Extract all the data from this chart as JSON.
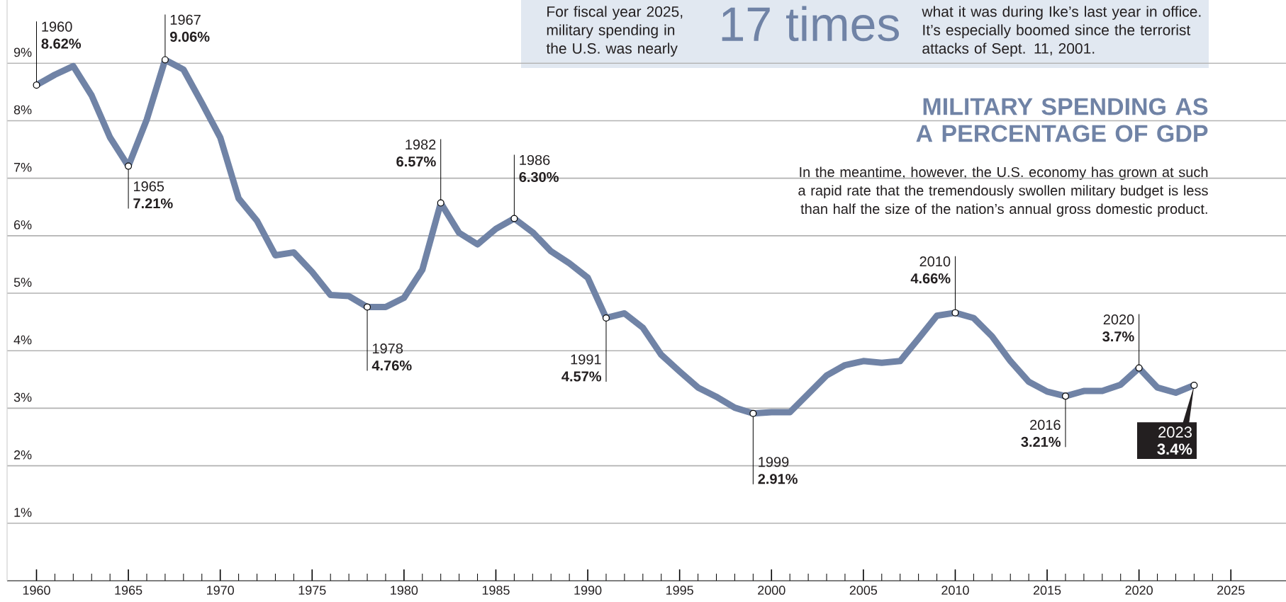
{
  "chart_data": {
    "type": "line",
    "title": "MILITARY SPENDING AS A PERCENTAGE OF GDP",
    "subtitle": "In the meantime, however, the U.S. economy has grown at such a rapid rate that the tremendously swollen military budget is less than half the size of the nation’s annual gross domestic product.",
    "x": [
      1960,
      1961,
      1962,
      1963,
      1964,
      1965,
      1966,
      1967,
      1968,
      1969,
      1970,
      1971,
      1972,
      1973,
      1974,
      1975,
      1976,
      1977,
      1978,
      1979,
      1980,
      1981,
      1982,
      1983,
      1984,
      1985,
      1986,
      1987,
      1988,
      1989,
      1990,
      1991,
      1992,
      1993,
      1994,
      1995,
      1996,
      1997,
      1998,
      1999,
      2000,
      2001,
      2002,
      2003,
      2004,
      2005,
      2006,
      2007,
      2008,
      2009,
      2010,
      2011,
      2012,
      2013,
      2014,
      2015,
      2016,
      2017,
      2018,
      2019,
      2020,
      2021,
      2022,
      2023
    ],
    "values": [
      8.62,
      8.8,
      8.95,
      8.44,
      7.71,
      7.21,
      8.02,
      9.06,
      8.89,
      8.31,
      7.71,
      6.65,
      6.26,
      5.66,
      5.71,
      5.37,
      4.97,
      4.95,
      4.76,
      4.76,
      4.92,
      5.41,
      6.57,
      6.05,
      5.85,
      6.12,
      6.3,
      6.06,
      5.73,
      5.52,
      5.27,
      4.57,
      4.65,
      4.4,
      3.93,
      3.64,
      3.36,
      3.2,
      3.01,
      2.91,
      2.93,
      2.93,
      3.25,
      3.57,
      3.75,
      3.82,
      3.79,
      3.82,
      4.21,
      4.61,
      4.66,
      4.57,
      4.25,
      3.82,
      3.46,
      3.29,
      3.21,
      3.3,
      3.3,
      3.41,
      3.7,
      3.36,
      3.27,
      3.4
    ],
    "color": "#7083a6",
    "xlim": [
      1958.4,
      2028
    ],
    "ylim": [
      0,
      10.1
    ],
    "xticks": [
      1960,
      1965,
      1970,
      1975,
      1980,
      1985,
      1990,
      1995,
      2000,
      2005,
      2010,
      2015,
      2020,
      2025
    ],
    "yticks": [
      {
        "value": 1,
        "label": "1%"
      },
      {
        "value": 2,
        "label": "2%"
      },
      {
        "value": 3,
        "label": "3%"
      },
      {
        "value": 4,
        "label": "4%"
      },
      {
        "value": 5,
        "label": "5%"
      },
      {
        "value": 6,
        "label": "6%"
      },
      {
        "value": 7,
        "label": "7%"
      },
      {
        "value": 8,
        "label": "8%"
      },
      {
        "value": 9,
        "label": "9%"
      }
    ],
    "grid": "y",
    "annotations": [
      "For fiscal year 2025, military spending in the U.S. was nearly",
      "17 times",
      "what it was during Ike’s last year in office. It’s especially boomed since the terrorist attacks of Sept. 11, 2001.",
      {
        "text": "1960 **8.62%**",
        "x": 1960,
        "y": 8.62
      },
      {
        "text": "1965 **7.21%**",
        "x": 1965,
        "y": 7.21
      },
      {
        "text": "1967 **9.06%**",
        "x": 1967,
        "y": 9.06
      },
      {
        "text": "1978 **4.76%**",
        "x": 1978,
        "y": 4.76
      },
      {
        "text": "1982 **6.57%**",
        "x": 1982,
        "y": 6.57
      },
      {
        "text": "1986 **6.30%**",
        "x": 1986,
        "y": 6.3
      },
      {
        "text": "1991 **4.57%**",
        "x": 1991,
        "y": 4.57
      },
      {
        "text": "1999 **2.91%**",
        "x": 1999,
        "y": 2.91
      },
      {
        "text": "2010 **4.66%**",
        "x": 2010,
        "y": 4.66
      },
      {
        "text": "2016 **3.21%**",
        "x": 2016,
        "y": 3.21
      },
      {
        "text": "2020 **3.7%**",
        "x": 2020,
        "y": 3.7
      },
      {
        "text": "2023 **3.4%**",
        "x": 2023,
        "y": 3.4
      }
    ]
  }
}
